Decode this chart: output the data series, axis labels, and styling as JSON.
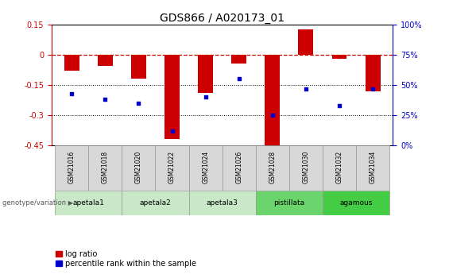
{
  "title": "GDS866 / A020173_01",
  "samples": [
    "GSM21016",
    "GSM21018",
    "GSM21020",
    "GSM21022",
    "GSM21024",
    "GSM21026",
    "GSM21028",
    "GSM21030",
    "GSM21032",
    "GSM21034"
  ],
  "log_ratio": [
    -0.08,
    -0.055,
    -0.12,
    -0.42,
    -0.19,
    -0.045,
    -0.48,
    0.125,
    -0.02,
    -0.18
  ],
  "percentile_rank": [
    43,
    38,
    35,
    12,
    40,
    55,
    25,
    47,
    33,
    47
  ],
  "groups": [
    {
      "name": "apetala1",
      "indices": [
        0,
        1
      ],
      "color": "#c8e8c8"
    },
    {
      "name": "apetala2",
      "indices": [
        2,
        3
      ],
      "color": "#c8e8c8"
    },
    {
      "name": "apetala3",
      "indices": [
        4,
        5
      ],
      "color": "#c8e8c8"
    },
    {
      "name": "pistillata",
      "indices": [
        6,
        7
      ],
      "color": "#6cd46c"
    },
    {
      "name": "agamous",
      "indices": [
        8,
        9
      ],
      "color": "#44cc44"
    }
  ],
  "ylim_left": [
    -0.45,
    0.15
  ],
  "ylim_right": [
    0,
    100
  ],
  "yticks_left": [
    0.15,
    0.0,
    -0.15,
    -0.3,
    -0.45
  ],
  "yticks_right": [
    100,
    75,
    50,
    25,
    0
  ],
  "bar_color": "#cc0000",
  "scatter_color": "#0000cc",
  "hline_color": "#cc0000",
  "title_fontsize": 10,
  "tick_fontsize": 7,
  "legend_fontsize": 7
}
